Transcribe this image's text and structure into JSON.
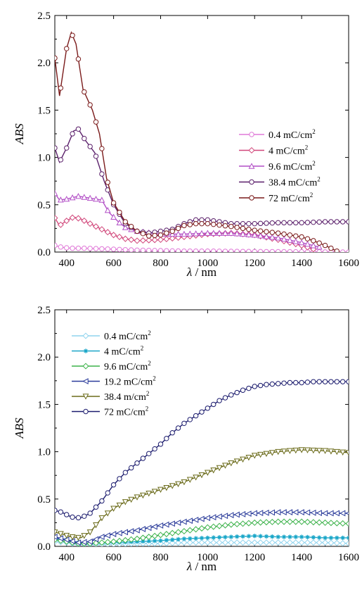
{
  "chart_data": [
    {
      "type": "line",
      "xlabel_italic": "λ",
      "xlabel_rest": " / nm",
      "ylabel": "ABS",
      "xlim": [
        350,
        1600
      ],
      "ylim": [
        0,
        2.5
      ],
      "xticks": [
        400,
        600,
        800,
        1000,
        1200,
        1400,
        1600
      ],
      "yticks": [
        0.0,
        0.5,
        1.0,
        1.5,
        2.0,
        2.5
      ],
      "ytick_labels": [
        "0.0",
        "0.5",
        "1.0",
        "1.5",
        "2.0",
        "2.5"
      ],
      "grid": false,
      "legend_position": "right",
      "series": [
        {
          "name": "0.4 mC/cm",
          "name_sup": "2",
          "color": "#e07ad8",
          "marker": "circle",
          "points": [
            [
              350,
              0.07
            ],
            [
              380,
              0.05
            ],
            [
              420,
              0.04
            ],
            [
              480,
              0.04
            ],
            [
              540,
              0.035
            ],
            [
              600,
              0.03
            ],
            [
              700,
              0.02
            ],
            [
              800,
              0.015
            ],
            [
              900,
              0.01
            ],
            [
              1000,
              0.01
            ],
            [
              1200,
              0.005
            ],
            [
              1400,
              0.003
            ],
            [
              1600,
              0.0
            ]
          ]
        },
        {
          "name": "4 mC/cm",
          "name_sup": "2",
          "color": "#d1467a",
          "marker": "diamond",
          "points": [
            [
              350,
              0.36
            ],
            [
              370,
              0.28
            ],
            [
              400,
              0.33
            ],
            [
              430,
              0.37
            ],
            [
              460,
              0.35
            ],
            [
              500,
              0.3
            ],
            [
              550,
              0.24
            ],
            [
              600,
              0.18
            ],
            [
              650,
              0.14
            ],
            [
              700,
              0.12
            ],
            [
              800,
              0.13
            ],
            [
              900,
              0.16
            ],
            [
              1000,
              0.19
            ],
            [
              1100,
              0.2
            ],
            [
              1200,
              0.18
            ],
            [
              1300,
              0.13
            ],
            [
              1400,
              0.07
            ],
            [
              1450,
              0.03
            ]
          ]
        },
        {
          "name": "9.6 mC/cm",
          "name_sup": "2",
          "color": "#b24fc6",
          "marker": "triangle",
          "points": [
            [
              350,
              0.62
            ],
            [
              370,
              0.55
            ],
            [
              400,
              0.56
            ],
            [
              450,
              0.59
            ],
            [
              500,
              0.57
            ],
            [
              550,
              0.55
            ],
            [
              580,
              0.42
            ],
            [
              620,
              0.32
            ],
            [
              650,
              0.26
            ],
            [
              700,
              0.22
            ],
            [
              800,
              0.19
            ],
            [
              900,
              0.19
            ],
            [
              1000,
              0.2
            ],
            [
              1100,
              0.2
            ],
            [
              1200,
              0.18
            ],
            [
              1300,
              0.15
            ],
            [
              1400,
              0.1
            ],
            [
              1480,
              0.05
            ]
          ]
        },
        {
          "name": "38.4 mC/cm",
          "name_sup": "2",
          "color": "#5a1f6a",
          "marker": "circle",
          "points": [
            [
              350,
              1.1
            ],
            [
              370,
              0.95
            ],
            [
              400,
              1.1
            ],
            [
              430,
              1.28
            ],
            [
              450,
              1.3
            ],
            [
              480,
              1.18
            ],
            [
              520,
              1.05
            ],
            [
              560,
              0.75
            ],
            [
              600,
              0.5
            ],
            [
              650,
              0.3
            ],
            [
              700,
              0.22
            ],
            [
              750,
              0.2
            ],
            [
              800,
              0.22
            ],
            [
              850,
              0.24
            ],
            [
              900,
              0.3
            ],
            [
              950,
              0.34
            ],
            [
              1000,
              0.34
            ],
            [
              1100,
              0.3
            ],
            [
              1200,
              0.3
            ],
            [
              1300,
              0.31
            ],
            [
              1400,
              0.31
            ],
            [
              1500,
              0.32
            ],
            [
              1600,
              0.32
            ]
          ]
        },
        {
          "name": "72 mC/cm",
          "name_sup": "2",
          "color": "#7a1a1a",
          "marker": "circle",
          "points": [
            [
              350,
              2.05
            ],
            [
              370,
              1.65
            ],
            [
              400,
              2.15
            ],
            [
              420,
              2.32
            ],
            [
              440,
              2.2
            ],
            [
              470,
              1.72
            ],
            [
              510,
              1.5
            ],
            [
              540,
              1.25
            ],
            [
              570,
              0.78
            ],
            [
              600,
              0.52
            ],
            [
              650,
              0.32
            ],
            [
              700,
              0.22
            ],
            [
              750,
              0.17
            ],
            [
              800,
              0.18
            ],
            [
              850,
              0.22
            ],
            [
              900,
              0.28
            ],
            [
              950,
              0.3
            ],
            [
              1000,
              0.3
            ],
            [
              1100,
              0.27
            ],
            [
              1200,
              0.23
            ],
            [
              1300,
              0.2
            ],
            [
              1400,
              0.16
            ],
            [
              1450,
              0.12
            ],
            [
              1500,
              0.07
            ],
            [
              1550,
              0.01
            ]
          ]
        }
      ]
    },
    {
      "type": "line",
      "xlabel_italic": "λ",
      "xlabel_rest": " / nm",
      "ylabel": "ABS",
      "xlim": [
        350,
        1600
      ],
      "ylim": [
        0,
        2.5
      ],
      "xticks": [
        400,
        600,
        800,
        1000,
        1200,
        1400,
        1600
      ],
      "yticks": [
        0.0,
        0.5,
        1.0,
        1.5,
        2.0,
        2.5
      ],
      "ytick_labels": [
        "0.0",
        "0.5",
        "1.0",
        "1.5",
        "2.0",
        "2.5"
      ],
      "grid": false,
      "legend_position": "top-left",
      "series": [
        {
          "name": "0.4 mC/cm",
          "name_sup": "2",
          "color": "#8fd3ee",
          "marker": "diamond",
          "points": [
            [
              350,
              0.05
            ],
            [
              400,
              0.04
            ],
            [
              450,
              0.02
            ],
            [
              500,
              0.02
            ],
            [
              600,
              0.02
            ],
            [
              700,
              0.03
            ],
            [
              800,
              0.03
            ],
            [
              900,
              0.04
            ],
            [
              1000,
              0.04
            ],
            [
              1100,
              0.04
            ],
            [
              1200,
              0.04
            ],
            [
              1300,
              0.04
            ],
            [
              1400,
              0.04
            ],
            [
              1500,
              0.04
            ],
            [
              1600,
              0.03
            ]
          ]
        },
        {
          "name": "4 mC/cm",
          "name_sup": "2",
          "color": "#1aa6c8",
          "marker": "star",
          "points": [
            [
              350,
              0.08
            ],
            [
              400,
              0.07
            ],
            [
              450,
              0.04
            ],
            [
              500,
              0.03
            ],
            [
              600,
              0.04
            ],
            [
              700,
              0.05
            ],
            [
              800,
              0.06
            ],
            [
              900,
              0.08
            ],
            [
              1000,
              0.09
            ],
            [
              1100,
              0.1
            ],
            [
              1200,
              0.11
            ],
            [
              1300,
              0.1
            ],
            [
              1400,
              0.1
            ],
            [
              1500,
              0.09
            ],
            [
              1600,
              0.09
            ]
          ]
        },
        {
          "name": "9.6 mC/cm",
          "name_sup": "2",
          "color": "#3cb24a",
          "marker": "diamond",
          "points": [
            [
              350,
              0.07
            ],
            [
              400,
              0.05
            ],
            [
              450,
              0.03
            ],
            [
              500,
              0.03
            ],
            [
              600,
              0.05
            ],
            [
              700,
              0.08
            ],
            [
              800,
              0.12
            ],
            [
              900,
              0.16
            ],
            [
              1000,
              0.2
            ],
            [
              1100,
              0.23
            ],
            [
              1200,
              0.25
            ],
            [
              1300,
              0.26
            ],
            [
              1400,
              0.26
            ],
            [
              1500,
              0.25
            ],
            [
              1600,
              0.24
            ]
          ]
        },
        {
          "name": "19.2 mC/cm",
          "name_sup": "2",
          "color": "#2a3b9a",
          "marker": "triangle-left",
          "points": [
            [
              350,
              0.1
            ],
            [
              400,
              0.07
            ],
            [
              450,
              0.04
            ],
            [
              500,
              0.05
            ],
            [
              550,
              0.1
            ],
            [
              600,
              0.13
            ],
            [
              700,
              0.17
            ],
            [
              800,
              0.22
            ],
            [
              900,
              0.26
            ],
            [
              1000,
              0.3
            ],
            [
              1100,
              0.33
            ],
            [
              1200,
              0.35
            ],
            [
              1300,
              0.36
            ],
            [
              1400,
              0.36
            ],
            [
              1500,
              0.35
            ],
            [
              1600,
              0.35
            ]
          ]
        },
        {
          "name": "38.4 m/cm",
          "name_sup": "2",
          "color": "#6b6b1a",
          "marker": "triangle-down",
          "points": [
            [
              350,
              0.15
            ],
            [
              380,
              0.13
            ],
            [
              420,
              0.1
            ],
            [
              460,
              0.09
            ],
            [
              500,
              0.15
            ],
            [
              550,
              0.3
            ],
            [
              600,
              0.4
            ],
            [
              650,
              0.47
            ],
            [
              700,
              0.52
            ],
            [
              800,
              0.6
            ],
            [
              900,
              0.68
            ],
            [
              1000,
              0.78
            ],
            [
              1100,
              0.88
            ],
            [
              1200,
              0.96
            ],
            [
              1300,
              1.0
            ],
            [
              1400,
              1.02
            ],
            [
              1500,
              1.01
            ],
            [
              1600,
              0.99
            ]
          ]
        },
        {
          "name": "72 mC/cm",
          "name_sup": "2",
          "color": "#1c1c6e",
          "marker": "circle",
          "points": [
            [
              350,
              0.38
            ],
            [
              380,
              0.36
            ],
            [
              420,
              0.31
            ],
            [
              460,
              0.3
            ],
            [
              500,
              0.35
            ],
            [
              550,
              0.48
            ],
            [
              600,
              0.65
            ],
            [
              650,
              0.78
            ],
            [
              700,
              0.88
            ],
            [
              750,
              0.98
            ],
            [
              800,
              1.08
            ],
            [
              850,
              1.2
            ],
            [
              900,
              1.3
            ],
            [
              950,
              1.38
            ],
            [
              1000,
              1.46
            ],
            [
              1050,
              1.54
            ],
            [
              1100,
              1.6
            ],
            [
              1150,
              1.65
            ],
            [
              1200,
              1.69
            ],
            [
              1250,
              1.71
            ],
            [
              1300,
              1.72
            ],
            [
              1350,
              1.73
            ],
            [
              1400,
              1.73
            ],
            [
              1450,
              1.74
            ],
            [
              1500,
              1.74
            ],
            [
              1550,
              1.74
            ],
            [
              1600,
              1.74
            ]
          ]
        }
      ]
    }
  ]
}
